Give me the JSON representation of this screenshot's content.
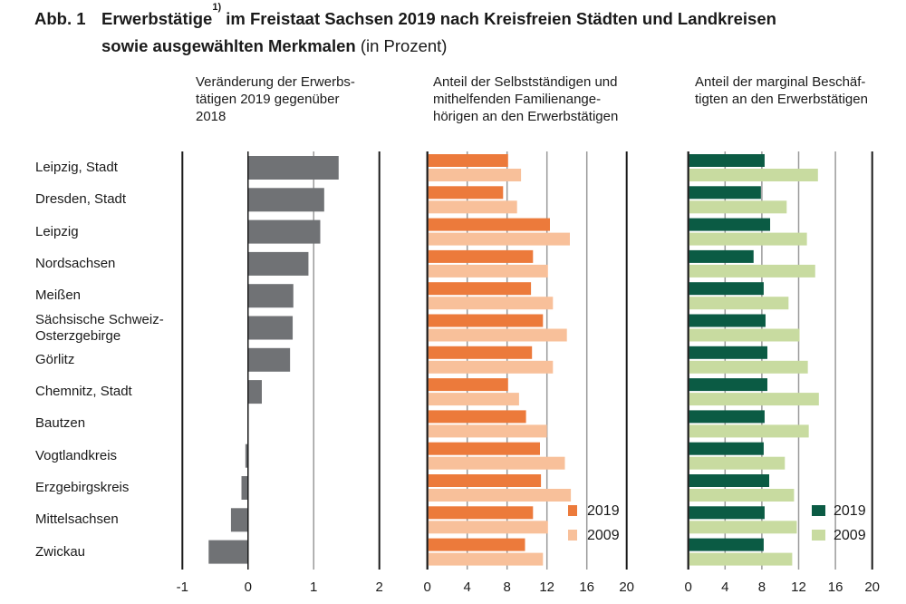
{
  "title": {
    "prefix": "Abb. 1",
    "line1": "Erwerbstätige",
    "footnote": "1)",
    "line1_rest": " im Freistaat Sachsen 2019 nach Kreisfreien Städten und Landkreisen",
    "line2": "sowie ausgewählten Merkmalen",
    "unit": " (in Prozent)"
  },
  "colors": {
    "change_bar": "#707275",
    "self_2019": "#EC7A3B",
    "self_2009": "#F8C09A",
    "marginal_2019": "#0B5B44",
    "marginal_2009": "#C8DBA0",
    "axis": "#1a1a1a",
    "grid": "#9a9a9a"
  },
  "chart_data": [
    {
      "type": "bar",
      "orientation": "horizontal",
      "title": "Veränderung der Erwerbstätigen 2019 gegenüber 2018",
      "subtitle_lines": "Veränderung der Erwerbs-\ntätigen 2019 gegenüber\n2018",
      "categories": [
        "Leipzig, Stadt",
        "Dresden, Stadt",
        "Leipzig",
        "Nordsachsen",
        "Meißen",
        "Sächsische Schweiz-Osterzgebirge",
        "Görlitz",
        "Chemnitz, Stadt",
        "Bautzen",
        "Vogtlandkreis",
        "Erzgebirgskreis",
        "Mittelsachsen",
        "Zwickau"
      ],
      "values": [
        1.38,
        1.16,
        1.1,
        0.92,
        0.69,
        0.68,
        0.64,
        0.21,
        0.0,
        -0.04,
        -0.1,
        -0.26,
        -0.6
      ],
      "xlim": [
        -1,
        2
      ],
      "xticks": [
        "-1",
        "0",
        "1",
        "2"
      ],
      "grid": true,
      "legend": null
    },
    {
      "type": "bar",
      "orientation": "horizontal",
      "title": "Anteil der Selbstständigen und mithelfenden Familienangehörigen an den Erwerbstätigen",
      "subtitle_lines": "Anteil der Selbstständigen und\nmithelfenden Familienange-\nhörigen an den Erwerbstätigen",
      "categories": [
        "Leipzig, Stadt",
        "Dresden, Stadt",
        "Leipzig",
        "Nordsachsen",
        "Meißen",
        "Sächsische Schweiz-Osterzgebirge",
        "Görlitz",
        "Chemnitz, Stadt",
        "Bautzen",
        "Vogtlandkreis",
        "Erzgebirgskreis",
        "Mittelsachsen",
        "Zwickau"
      ],
      "series": [
        {
          "name": "2019",
          "values": [
            8.1,
            7.6,
            12.3,
            10.6,
            10.4,
            11.6,
            10.5,
            8.1,
            9.9,
            11.3,
            11.4,
            10.6,
            9.8
          ]
        },
        {
          "name": "2009",
          "values": [
            9.4,
            9.0,
            14.3,
            12.1,
            12.6,
            14.0,
            12.6,
            9.2,
            12.0,
            13.8,
            14.4,
            12.1,
            11.6
          ]
        }
      ],
      "xlim": [
        0,
        20
      ],
      "xticks": [
        "0",
        "4",
        "8",
        "12",
        "16",
        "20"
      ],
      "grid": true,
      "legend": "bottom-right"
    },
    {
      "type": "bar",
      "orientation": "horizontal",
      "title": "Anteil der marginal Beschäftigten an den Erwerbstätigen",
      "subtitle_lines": "Anteil der marginal Beschäf-\ntigten an den Erwerbstätigen",
      "categories": [
        "Leipzig, Stadt",
        "Dresden, Stadt",
        "Leipzig",
        "Nordsachsen",
        "Meißen",
        "Sächsische Schweiz-Osterzgebirge",
        "Görlitz",
        "Chemnitz, Stadt",
        "Bautzen",
        "Vogtlandkreis",
        "Erzgebirgskreis",
        "Mittelsachsen",
        "Zwickau"
      ],
      "series": [
        {
          "name": "2019",
          "values": [
            8.3,
            7.9,
            8.9,
            7.1,
            8.2,
            8.4,
            8.6,
            8.6,
            8.3,
            8.2,
            8.8,
            8.3,
            8.2
          ]
        },
        {
          "name": "2009",
          "values": [
            14.1,
            10.7,
            12.9,
            13.8,
            10.9,
            12.1,
            13.0,
            14.2,
            13.1,
            10.5,
            11.5,
            11.8,
            11.3
          ]
        }
      ],
      "xlim": [
        0,
        20
      ],
      "xticks": [
        "0",
        "4",
        "8",
        "12",
        "16",
        "20"
      ],
      "grid": true,
      "legend": "bottom-right"
    }
  ],
  "row_labels": [
    "Leipzig, Stadt",
    "Dresden, Stadt",
    "Leipzig",
    "Nordsachsen",
    "Meißen",
    "Sächsische Schweiz-\n  Osterzgebirge",
    "Görlitz",
    "Chemnitz, Stadt",
    "Bautzen",
    "Vogtlandkreis",
    "Erzgebirgskreis",
    "Mittelsachsen",
    "Zwickau"
  ]
}
